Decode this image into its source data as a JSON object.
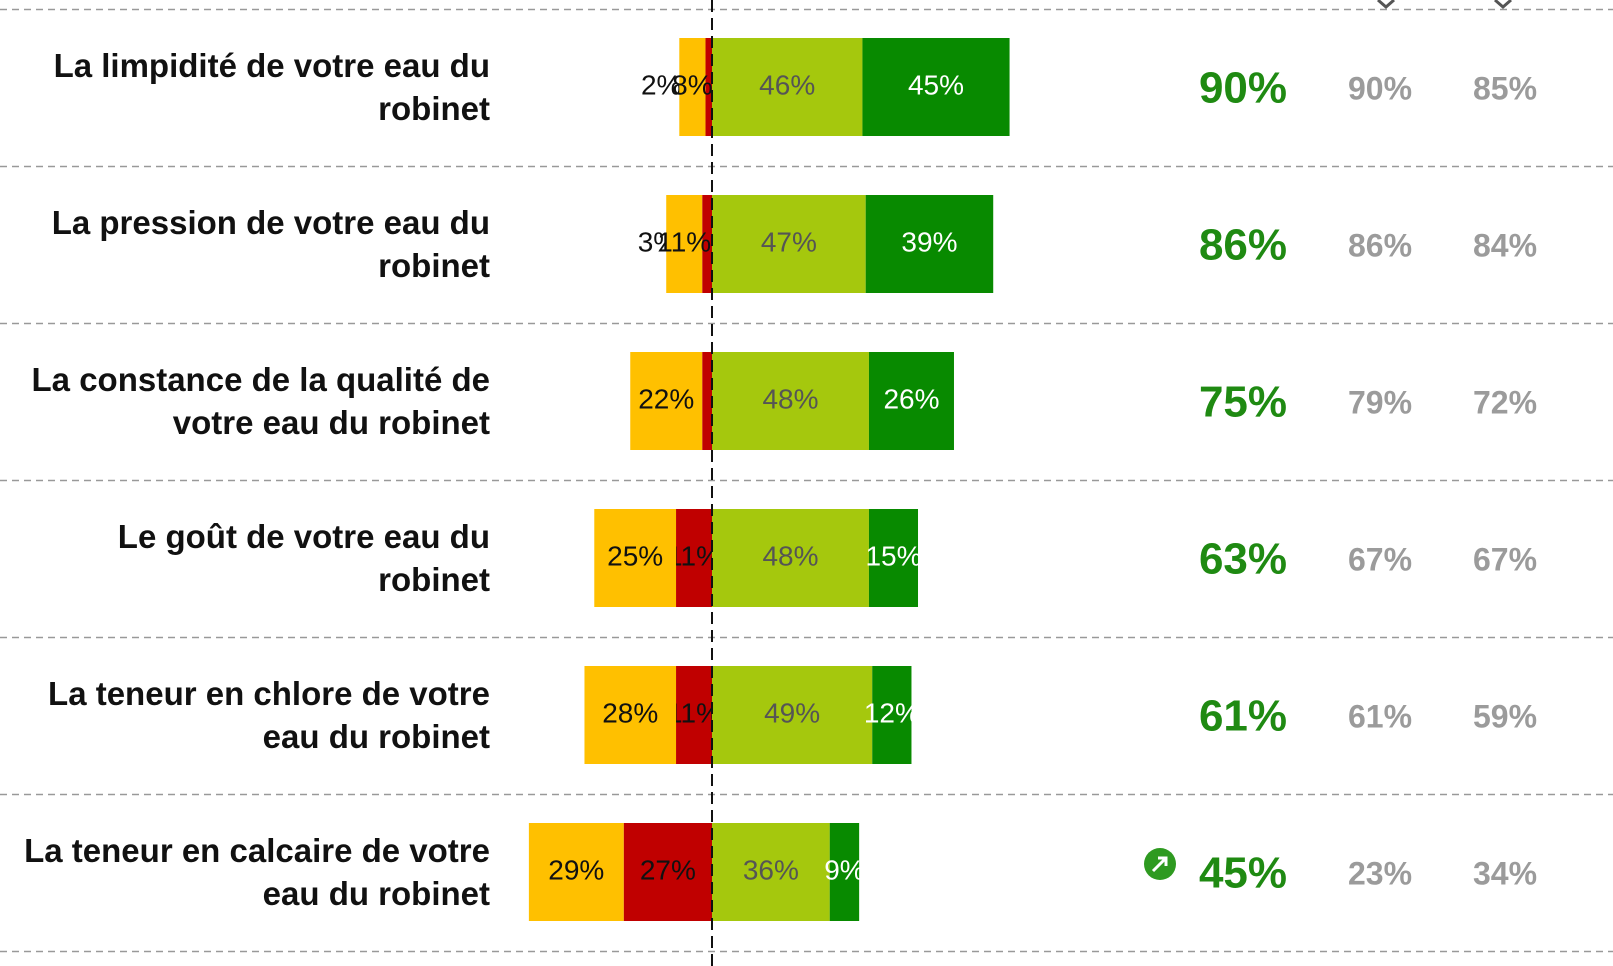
{
  "chart_data": {
    "type": "diverging_bar",
    "categories": [
      "La limpidité de votre eau du robinet",
      "La pression de votre eau du robinet",
      "La constance de la qualité de votre eau du robinet",
      "Le goût de votre eau du robinet",
      "La teneur en chlore de votre eau du robinet",
      "La teneur en calcaire de votre eau du robinet"
    ],
    "series": [
      {
        "color": "#c00000",
        "side": "negative",
        "values": [
          2,
          3,
          3,
          11,
          11,
          27
        ],
        "value_labels": [
          "2%",
          "3%",
          "3%",
          "11%",
          "11%",
          "27%"
        ]
      },
      {
        "color": "#ffc000",
        "side": "negative",
        "values": [
          8,
          11,
          22,
          25,
          28,
          29
        ],
        "value_labels": [
          "8%",
          "11%",
          "22%",
          "25%",
          "28%",
          "29%"
        ]
      },
      {
        "color": "#a5c80d",
        "side": "positive",
        "values": [
          46,
          47,
          48,
          48,
          49,
          36
        ],
        "value_labels": [
          "46%",
          "47%",
          "48%",
          "48%",
          "49%",
          "36%"
        ]
      },
      {
        "color": "#088a00",
        "side": "positive",
        "values": [
          45,
          39,
          26,
          15,
          12,
          9
        ],
        "value_labels": [
          "45%",
          "39%",
          "26%",
          "15%",
          "12%",
          "9%"
        ]
      }
    ],
    "columns": [
      {
        "color": "#1f8a12",
        "values": [
          90,
          86,
          75,
          63,
          61,
          45
        ],
        "value_labels": [
          "90%",
          "86%",
          "75%",
          "63%",
          "61%",
          "45%"
        ]
      },
      {
        "color": "#9b9b9b",
        "values": [
          90,
          86,
          79,
          67,
          61,
          23
        ],
        "value_labels": [
          "90%",
          "86%",
          "79%",
          "67%",
          "61%",
          "23%"
        ]
      },
      {
        "color": "#9b9b9b",
        "values": [
          85,
          84,
          72,
          67,
          59,
          34
        ],
        "value_labels": [
          "85%",
          "84%",
          "72%",
          "67%",
          "59%",
          "34%"
        ]
      }
    ]
  }
}
